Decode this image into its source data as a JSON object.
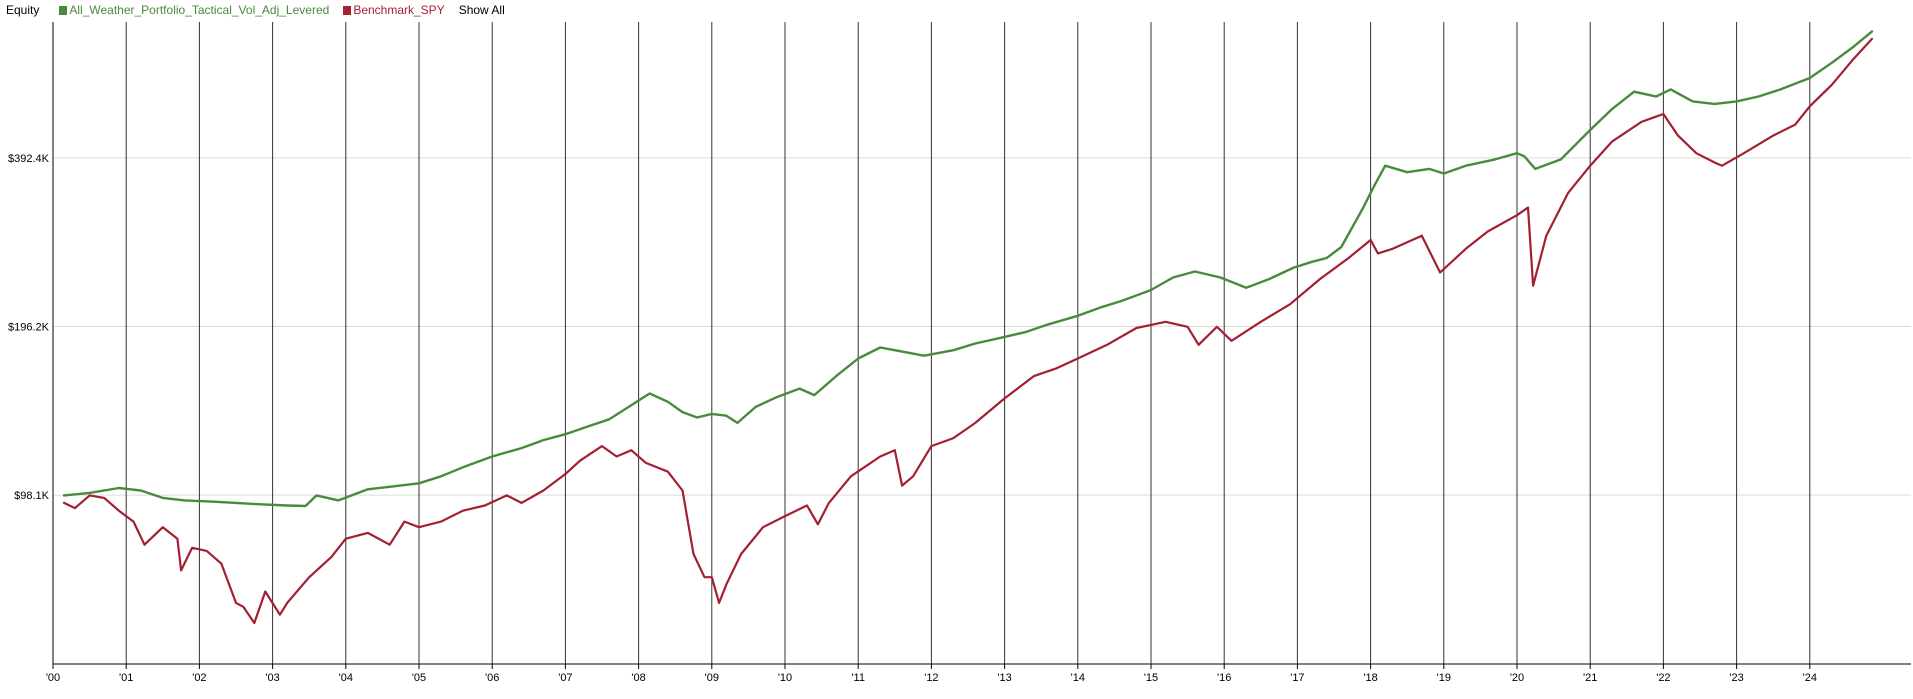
{
  "legend": {
    "title": "Equity",
    "show_all_label": "Show All"
  },
  "chart_data": {
    "type": "line",
    "title": "",
    "xlabel": "",
    "ylabel": "",
    "xlim": [
      2000.0,
      2024.85
    ],
    "ylim": [
      49000,
      686000
    ],
    "y_scale": "log",
    "grid": {
      "vertical": true,
      "horizontal": true
    },
    "legend_position": "top-left",
    "x_ticks": [
      {
        "value": 2000,
        "label": "'00"
      },
      {
        "value": 2001,
        "label": "'01"
      },
      {
        "value": 2002,
        "label": "'02"
      },
      {
        "value": 2003,
        "label": "'03"
      },
      {
        "value": 2004,
        "label": "'04"
      },
      {
        "value": 2005,
        "label": "'05"
      },
      {
        "value": 2006,
        "label": "'06"
      },
      {
        "value": 2007,
        "label": "'07"
      },
      {
        "value": 2008,
        "label": "'08"
      },
      {
        "value": 2009,
        "label": "'09"
      },
      {
        "value": 2010,
        "label": "'10"
      },
      {
        "value": 2011,
        "label": "'11"
      },
      {
        "value": 2012,
        "label": "'12"
      },
      {
        "value": 2013,
        "label": "'13"
      },
      {
        "value": 2014,
        "label": "'14"
      },
      {
        "value": 2015,
        "label": "'15"
      },
      {
        "value": 2016,
        "label": "'16"
      },
      {
        "value": 2017,
        "label": "'17"
      },
      {
        "value": 2018,
        "label": "'18"
      },
      {
        "value": 2019,
        "label": "'19"
      },
      {
        "value": 2020,
        "label": "'20"
      },
      {
        "value": 2021,
        "label": "'21"
      },
      {
        "value": 2022,
        "label": "'22"
      },
      {
        "value": 2023,
        "label": "'23"
      },
      {
        "value": 2024,
        "label": "'24"
      }
    ],
    "y_ticks": [
      {
        "value": 98100,
        "label": "$98.1K"
      },
      {
        "value": 196200,
        "label": "$196.2K"
      },
      {
        "value": 392400,
        "label": "$392.4K"
      }
    ],
    "series": [
      {
        "name": "All_Weather_Portfolio_Tactical_Vol_Adj_Levered",
        "color": "#4a8a3e",
        "x": [
          2000.15,
          2000.5,
          2000.9,
          2001.2,
          2001.5,
          2001.8,
          2002.2,
          2002.5,
          2002.8,
          2003.2,
          2003.45,
          2003.6,
          2003.9,
          2004.3,
          2004.6,
          2005.0,
          2005.3,
          2005.6,
          2006.0,
          2006.4,
          2006.7,
          2007.0,
          2007.3,
          2007.6,
          2007.9,
          2008.15,
          2008.4,
          2008.6,
          2008.8,
          2009.0,
          2009.2,
          2009.35,
          2009.6,
          2009.9,
          2010.2,
          2010.4,
          2010.7,
          2011.0,
          2011.3,
          2011.6,
          2011.9,
          2012.3,
          2012.6,
          2013.0,
          2013.3,
          2013.6,
          2014.0,
          2014.3,
          2014.6,
          2015.0,
          2015.3,
          2015.6,
          2015.95,
          2016.3,
          2016.6,
          2016.95,
          2017.2,
          2017.4,
          2017.6,
          2017.9,
          2018.05,
          2018.2,
          2018.5,
          2018.8,
          2019.0,
          2019.3,
          2019.7,
          2020.0,
          2020.1,
          2020.25,
          2020.6,
          2021.0,
          2021.3,
          2021.6,
          2021.9,
          2022.1,
          2022.4,
          2022.7,
          2023.0,
          2023.3,
          2023.6,
          2024.0,
          2024.3,
          2024.6,
          2024.85
        ],
        "values": [
          98000,
          99000,
          101000,
          100000,
          97000,
          96000,
          95500,
          95000,
          94500,
          94000,
          93800,
          98000,
          96000,
          100500,
          101500,
          103000,
          106000,
          110000,
          115000,
          119000,
          123000,
          126000,
          130000,
          134000,
          142000,
          149000,
          144000,
          138000,
          135000,
          137000,
          136000,
          132000,
          141000,
          147000,
          152000,
          148000,
          160000,
          172000,
          180000,
          177000,
          174000,
          178000,
          183000,
          188000,
          192000,
          198000,
          205000,
          212000,
          218000,
          228000,
          240000,
          246000,
          240000,
          230000,
          238000,
          250000,
          256000,
          260000,
          272000,
          320000,
          350000,
          380000,
          370000,
          375000,
          368000,
          380000,
          390000,
          400000,
          395000,
          375000,
          390000,
          440000,
          480000,
          515000,
          505000,
          520000,
          495000,
          490000,
          495000,
          505000,
          520000,
          545000,
          580000,
          620000,
          660000
        ]
      },
      {
        "name": "Benchmark_SPY",
        "color": "#a31f31",
        "x": [
          2000.15,
          2000.3,
          2000.5,
          2000.7,
          2000.9,
          2001.1,
          2001.25,
          2001.5,
          2001.7,
          2001.75,
          2001.9,
          2002.1,
          2002.3,
          2002.5,
          2002.6,
          2002.75,
          2002.9,
          2003.1,
          2003.2,
          2003.5,
          2003.8,
          2004.0,
          2004.3,
          2004.6,
          2004.8,
          2005.0,
          2005.3,
          2005.6,
          2005.9,
          2006.2,
          2006.4,
          2006.7,
          2007.0,
          2007.2,
          2007.5,
          2007.7,
          2007.9,
          2008.1,
          2008.4,
          2008.6,
          2008.75,
          2008.9,
          2009.0,
          2009.1,
          2009.2,
          2009.4,
          2009.7,
          2010.0,
          2010.3,
          2010.45,
          2010.6,
          2010.9,
          2011.3,
          2011.5,
          2011.6,
          2011.75,
          2012.0,
          2012.3,
          2012.6,
          2013.0,
          2013.4,
          2013.7,
          2014.0,
          2014.4,
          2014.8,
          2015.2,
          2015.5,
          2015.65,
          2015.9,
          2016.1,
          2016.5,
          2016.9,
          2017.3,
          2017.7,
          2018.0,
          2018.1,
          2018.3,
          2018.7,
          2018.95,
          2019.3,
          2019.6,
          2020.0,
          2020.15,
          2020.22,
          2020.4,
          2020.7,
          2021.0,
          2021.3,
          2021.7,
          2022.0,
          2022.2,
          2022.45,
          2022.7,
          2022.8,
          2023.1,
          2023.5,
          2023.8,
          2024.0,
          2024.3,
          2024.6,
          2024.85
        ],
        "values": [
          95000,
          93000,
          98000,
          97000,
          92000,
          88000,
          80000,
          86000,
          82000,
          72000,
          79000,
          78000,
          74000,
          63000,
          62000,
          58000,
          66000,
          60000,
          63000,
          70000,
          76000,
          82000,
          84000,
          80000,
          88000,
          86000,
          88000,
          92000,
          94000,
          98000,
          95000,
          100000,
          107000,
          113000,
          120000,
          115000,
          118000,
          112000,
          108000,
          100000,
          77000,
          70000,
          70000,
          63000,
          68000,
          77000,
          86000,
          90000,
          94000,
          87000,
          95000,
          106000,
          115000,
          118000,
          102000,
          106000,
          120000,
          124000,
          132000,
          146000,
          160000,
          165000,
          172000,
          182000,
          195000,
          200000,
          196000,
          182000,
          196000,
          185000,
          200000,
          215000,
          238000,
          260000,
          280000,
          265000,
          270000,
          285000,
          245000,
          270000,
          290000,
          310000,
          320000,
          232000,
          285000,
          340000,
          380000,
          420000,
          455000,
          470000,
          430000,
          400000,
          385000,
          380000,
          400000,
          430000,
          450000,
          485000,
          530000,
          590000,
          640000
        ]
      }
    ]
  }
}
